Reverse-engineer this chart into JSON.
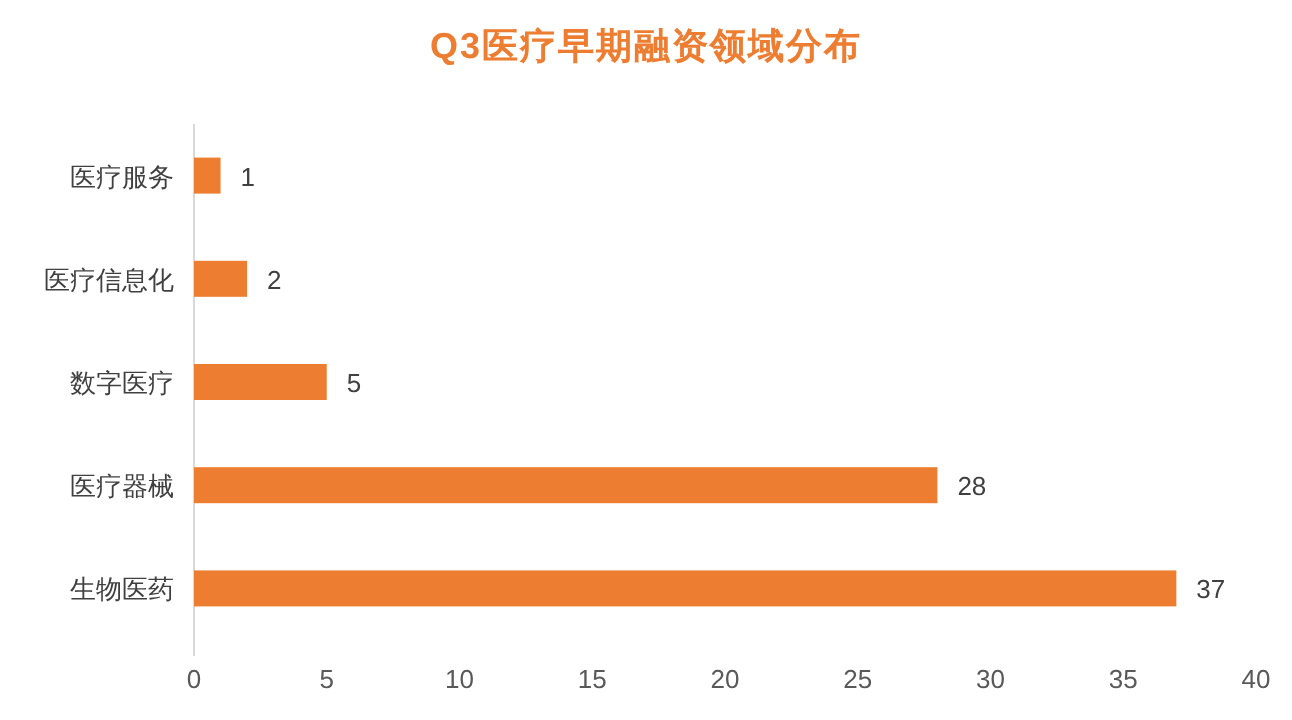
{
  "chart_data": {
    "type": "bar",
    "orientation": "horizontal",
    "title": "Q3医疗早期融资领域分布",
    "categories": [
      "医疗服务",
      "医疗信息化",
      "数字医疗",
      "医疗器械",
      "生物医药"
    ],
    "values": [
      1,
      2,
      5,
      28,
      37
    ],
    "color": "#ed7d31",
    "xlim": [
      0,
      40
    ],
    "xticks": [
      0,
      5,
      10,
      15,
      20,
      25,
      30,
      35,
      40
    ],
    "data_labels": true,
    "grid": false
  }
}
